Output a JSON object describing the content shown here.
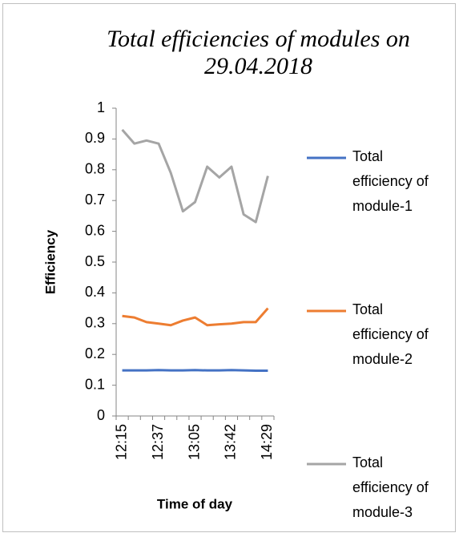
{
  "chart_data": {
    "type": "line",
    "title": "Total efficiencies of modules on 29.04.2018",
    "x_label": "Time of day",
    "y_label": "Efficiency",
    "categories": [
      "12:15",
      null,
      null,
      "12:37",
      null,
      null,
      "13:05",
      null,
      null,
      "13:42",
      null,
      null,
      "14:29"
    ],
    "series": [
      {
        "name": "Total efficiency of module-1",
        "color": "#4472c4",
        "values": [
          0.148,
          0.148,
          0.148,
          0.149,
          0.148,
          0.148,
          0.149,
          0.148,
          0.148,
          0.149,
          0.148,
          0.147,
          0.147
        ]
      },
      {
        "name": "Total efficiency of module-2",
        "color": "#ed7d31",
        "values": [
          0.325,
          0.32,
          0.305,
          0.3,
          0.295,
          0.31,
          0.32,
          0.295,
          0.298,
          0.3,
          0.305,
          0.305,
          0.35
        ]
      },
      {
        "name": "Total efficiency of module-3",
        "color": "#a5a5a5",
        "values": [
          0.93,
          0.885,
          0.895,
          0.885,
          0.79,
          0.665,
          0.695,
          0.81,
          0.775,
          0.81,
          0.655,
          0.63,
          0.78
        ]
      }
    ],
    "ylim": [
      0,
      1
    ],
    "yticks": [
      0,
      0.1,
      0.2,
      0.3,
      0.4,
      0.5,
      0.6,
      0.7,
      0.8,
      0.9,
      1
    ],
    "grid": false,
    "legend": "right"
  }
}
